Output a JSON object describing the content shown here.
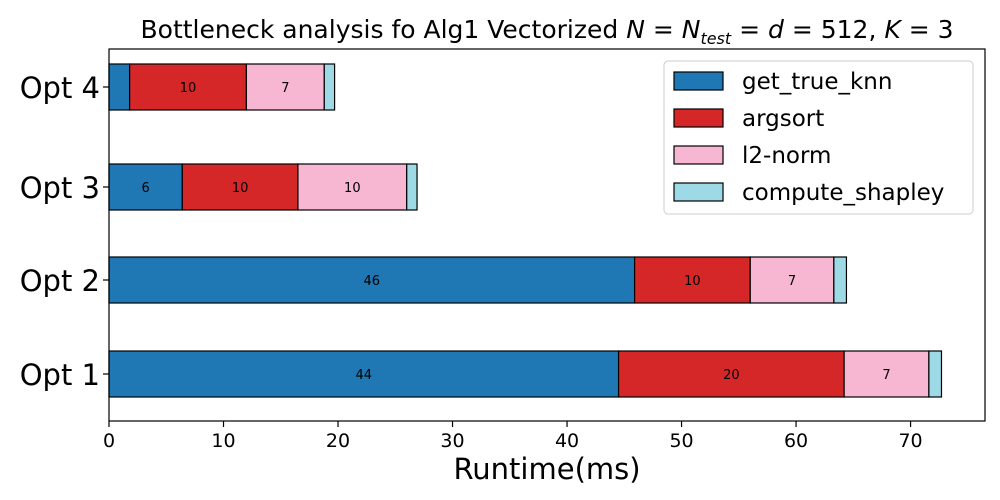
{
  "chart_data": {
    "type": "bar",
    "orientation": "horizontal",
    "stacked": true,
    "title_plain": "Bottleneck analysis fo Alg1 Vectorized",
    "title_math": "N = N_test = d = 512, K = 3",
    "xlabel": "Runtime(ms)",
    "ylabel": "",
    "xlim": [
      0,
      76.5
    ],
    "xticks": [
      0,
      10,
      20,
      30,
      40,
      50,
      60,
      70
    ],
    "grid": false,
    "legend_position": "top-right",
    "categories": [
      "Opt 4",
      "Opt 3",
      "Opt 2",
      "Opt 1"
    ],
    "series": [
      {
        "name": "get_true_knn",
        "color": "#1f77b4",
        "values": [
          1.8,
          6.4,
          45.9,
          44.5
        ],
        "labels": [
          "",
          "6",
          "46",
          "44"
        ]
      },
      {
        "name": "argsort",
        "color": "#d62728",
        "values": [
          10.2,
          10.1,
          10.1,
          19.7
        ],
        "labels": [
          "10",
          "10",
          "10",
          "20"
        ]
      },
      {
        "name": "l2-norm",
        "color": "#f7b6d2",
        "values": [
          6.8,
          9.5,
          7.3,
          7.4
        ],
        "labels": [
          "7",
          "10",
          "7",
          "7"
        ]
      },
      {
        "name": "compute_shapley",
        "color": "#9edae5",
        "values": [
          0.9,
          0.9,
          1.1,
          1.1
        ],
        "labels": [
          "",
          "",
          "",
          ""
        ]
      }
    ]
  }
}
